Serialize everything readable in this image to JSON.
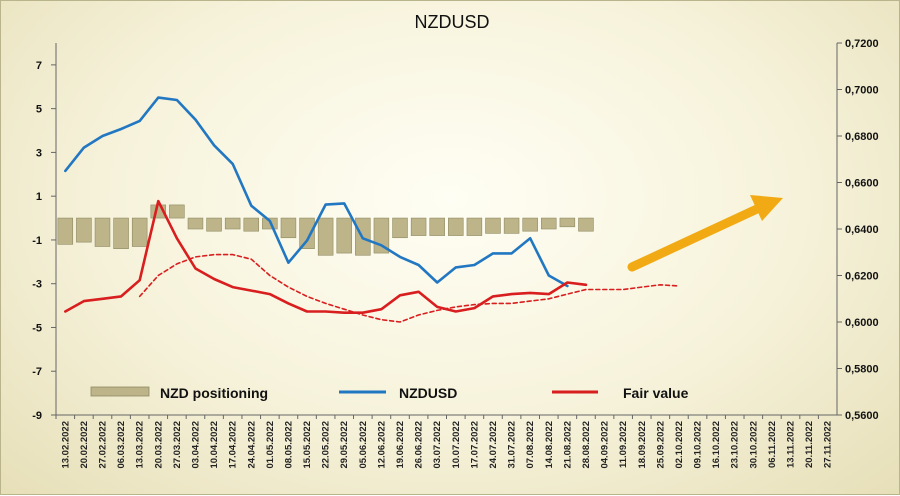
{
  "chart_data": {
    "type": "line",
    "title": "NZDUSD",
    "x_dates": [
      "13.02.2022",
      "20.02.2022",
      "27.02.2022",
      "06.03.2022",
      "13.03.2022",
      "20.03.2022",
      "27.03.2022",
      "03.04.2022",
      "10.04.2022",
      "17.04.2022",
      "24.04.2022",
      "01.05.2022",
      "08.05.2022",
      "15.05.2022",
      "22.05.2022",
      "29.05.2022",
      "05.06.2022",
      "12.06.2022",
      "19.06.2022",
      "26.06.2022",
      "03.07.2022",
      "10.07.2022",
      "17.07.2022",
      "24.07.2022",
      "31.07.2022",
      "07.08.2022",
      "14.08.2022",
      "21.08.2022",
      "28.08.2022",
      "04.09.2022",
      "11.09.2022",
      "18.09.2022",
      "25.09.2022",
      "02.10.2022",
      "09.10.2022",
      "16.10.2022",
      "23.10.2022",
      "30.10.2022",
      "06.11.2022",
      "13.11.2022",
      "20.11.2022",
      "27.11.2022"
    ],
    "left_axis": {
      "ticks": [
        "7",
        "5",
        "3",
        "1",
        "-1",
        "-3",
        "-5",
        "-7",
        "-9"
      ],
      "min": -9,
      "max": 8
    },
    "right_axis": {
      "ticks": [
        "0,7200",
        "0,7000",
        "0,6800",
        "0,6600",
        "0,6400",
        "0,6200",
        "0,6000",
        "0,5800",
        "0,5600"
      ],
      "min": 0.56,
      "max": 0.72
    },
    "series": [
      {
        "name": "NZD positioning",
        "type": "bar",
        "axis": "left",
        "color": "#bdb48a",
        "values": [
          -1.2,
          -1.1,
          -1.3,
          -1.4,
          -1.3,
          0.6,
          0.6,
          -0.5,
          -0.6,
          -0.5,
          -0.6,
          -0.5,
          -0.9,
          -1.4,
          -1.7,
          -1.6,
          -1.7,
          -1.6,
          -0.9,
          -0.8,
          -0.8,
          -0.8,
          -0.8,
          -0.7,
          -0.7,
          -0.6,
          -0.5,
          -0.4,
          -0.6
        ]
      },
      {
        "name": "NZDUSD",
        "type": "line",
        "axis": "right",
        "color": "#2277c2",
        "values": [
          0.665,
          0.675,
          0.68,
          0.683,
          0.6865,
          0.6965,
          0.6955,
          0.687,
          0.676,
          0.668,
          0.65,
          0.6435,
          0.6255,
          0.635,
          0.6505,
          0.651,
          0.636,
          0.633,
          0.628,
          0.6245,
          0.617,
          0.6235,
          0.6245,
          0.6295,
          0.6295,
          0.636,
          0.62,
          0.6155
        ]
      },
      {
        "name": "Fair value",
        "type": "line",
        "axis": "right",
        "color": "#d81e1e",
        "values": [
          0.6045,
          0.609,
          0.61,
          0.611,
          0.618,
          0.652,
          0.636,
          0.623,
          0.6185,
          0.615,
          0.6135,
          0.612,
          0.608,
          0.6045,
          0.6045,
          0.604,
          0.604,
          0.6055,
          0.6115,
          0.613,
          0.6065,
          0.6045,
          0.606,
          0.611,
          0.612,
          0.6125,
          0.612,
          0.617,
          0.616
        ]
      },
      {
        "name": "Fair value trend",
        "type": "line",
        "style": "dashed",
        "axis": "right",
        "color": "#d81e1e",
        "values": [
          null,
          null,
          null,
          null,
          0.611,
          0.62,
          0.625,
          0.628,
          0.629,
          0.629,
          0.627,
          0.62,
          0.615,
          0.611,
          0.608,
          0.6055,
          0.603,
          0.601,
          0.6,
          0.603,
          0.605,
          0.6065,
          0.6075,
          0.608,
          0.608,
          0.609,
          0.61,
          0.612,
          0.614,
          0.614,
          0.614,
          0.615,
          0.616,
          0.6155
        ]
      }
    ],
    "legend": [
      "NZD positioning",
      "NZDUSD",
      "Fair value"
    ]
  }
}
